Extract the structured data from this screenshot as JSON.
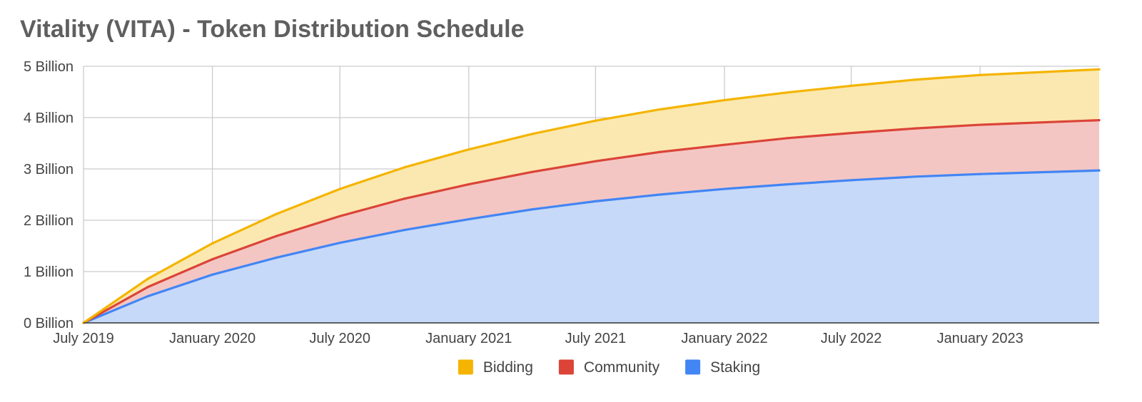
{
  "chart_data": {
    "type": "area",
    "stacked": true,
    "title": "Vitality (VITA) - Token Distribution Schedule",
    "xlabel": "",
    "ylabel": "",
    "x_ticks": [
      "July 2019",
      "January 2020",
      "July 2020",
      "January 2021",
      "July 2021",
      "January 2022",
      "July 2022",
      "January 2023"
    ],
    "y_ticks": [
      "0 Billion",
      "1 Billion",
      "2 Billion",
      "3 Billion",
      "4 Billion",
      "5 Billion"
    ],
    "ylim": [
      0,
      5
    ],
    "y_unit": "Billion",
    "xlim": [
      "2019-07-01",
      "2023-06-20"
    ],
    "grid": true,
    "legend_position": "bottom",
    "x": [
      "2019-07-01",
      "2019-10-01",
      "2020-01-01",
      "2020-04-01",
      "2020-07-01",
      "2020-10-01",
      "2021-01-01",
      "2021-04-01",
      "2021-07-01",
      "2021-10-01",
      "2022-01-01",
      "2022-04-01",
      "2022-07-01",
      "2022-10-01",
      "2023-01-01",
      "2023-06-20"
    ],
    "series": [
      {
        "name": "Staking",
        "color": "#4285f4",
        "cumulative_values": [
          0,
          0.52,
          0.94,
          1.27,
          1.56,
          1.81,
          2.02,
          2.21,
          2.37,
          2.5,
          2.61,
          2.7,
          2.78,
          2.85,
          2.9,
          2.97
        ]
      },
      {
        "name": "Community",
        "color": "#db4437",
        "cumulative_values": [
          0,
          0.7,
          1.24,
          1.69,
          2.08,
          2.42,
          2.7,
          2.94,
          3.15,
          3.33,
          3.47,
          3.6,
          3.7,
          3.79,
          3.86,
          3.95
        ]
      },
      {
        "name": "Bidding",
        "color": "#f4b400",
        "cumulative_values": [
          0,
          0.86,
          1.55,
          2.12,
          2.61,
          3.03,
          3.38,
          3.68,
          3.94,
          4.16,
          4.34,
          4.49,
          4.62,
          4.74,
          4.83,
          4.94
        ]
      }
    ],
    "legend": [
      {
        "name": "Bidding",
        "color": "#f4b400"
      },
      {
        "name": "Community",
        "color": "#db4437"
      },
      {
        "name": "Staking",
        "color": "#4285f4"
      }
    ]
  }
}
